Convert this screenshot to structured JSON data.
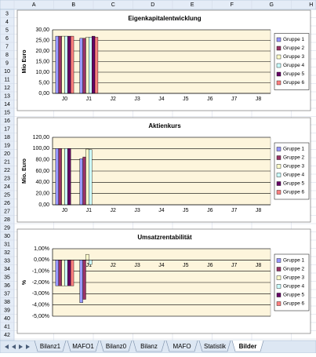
{
  "spreadsheet": {
    "columns": [
      "A",
      "B",
      "C",
      "D",
      "E",
      "F",
      "G",
      "H"
    ],
    "rows": [
      3,
      4,
      5,
      6,
      7,
      8,
      9,
      10,
      11,
      12,
      13,
      14,
      15,
      16,
      17,
      18,
      19,
      20,
      21,
      22,
      23,
      24,
      25,
      26,
      27,
      28,
      29,
      30,
      31,
      32,
      33,
      34,
      35,
      36,
      37,
      38,
      39,
      40,
      41,
      42
    ],
    "sheet_tabs": [
      "Bilanz1",
      "MAFO1",
      "Bilanz0",
      "Bilanz",
      "MAFO",
      "Statistik",
      "Bilder"
    ],
    "active_tab": 6
  },
  "chart_data": [
    {
      "type": "bar",
      "title": "Eigenkapitalentwicklung",
      "y_label": "Mio Euro",
      "categories": [
        "J0",
        "J1",
        "J2",
        "J3",
        "J4",
        "J5",
        "J6",
        "J7",
        "J8"
      ],
      "series": [
        {
          "name": "Gruppe 1",
          "color": "#9999ff",
          "values": [
            27,
            26,
            null,
            null,
            null,
            null,
            null,
            null,
            null
          ]
        },
        {
          "name": "Gruppe 2",
          "color": "#993366",
          "values": [
            27,
            26,
            null,
            null,
            null,
            null,
            null,
            null,
            null
          ]
        },
        {
          "name": "Gruppe 3",
          "color": "#ffffcc",
          "values": [
            27,
            26.5,
            null,
            null,
            null,
            null,
            null,
            null,
            null
          ]
        },
        {
          "name": "Gruppe 4",
          "color": "#ccffff",
          "values": [
            27,
            26.5,
            null,
            null,
            null,
            null,
            null,
            null,
            null
          ]
        },
        {
          "name": "Gruppe 5",
          "color": "#660066",
          "values": [
            27,
            27,
            null,
            null,
            null,
            null,
            null,
            null,
            null
          ]
        },
        {
          "name": "Gruppe 6",
          "color": "#ff8080",
          "values": [
            27,
            26.5,
            null,
            null,
            null,
            null,
            null,
            null,
            null
          ]
        }
      ],
      "ylim": [
        0,
        30
      ],
      "yticks": [
        {
          "value": 0,
          "label": "0,00"
        },
        {
          "value": 5,
          "label": "5,00"
        },
        {
          "value": 10,
          "label": "10,00"
        },
        {
          "value": 15,
          "label": "15,00"
        },
        {
          "value": 20,
          "label": "20,00"
        },
        {
          "value": 25,
          "label": "25,00"
        },
        {
          "value": 30,
          "label": "30,00"
        }
      ],
      "grid": true,
      "legend": "right"
    },
    {
      "type": "bar",
      "title": "Aktienkurs",
      "y_label": "Mio. Euro",
      "categories": [
        "J0",
        "J1",
        "J2",
        "J3",
        "J4",
        "J5",
        "J6",
        "J7",
        "J8"
      ],
      "series": [
        {
          "name": "Gruppe 1",
          "color": "#9999ff",
          "values": [
            100,
            82,
            null,
            null,
            null,
            null,
            null,
            null,
            null
          ]
        },
        {
          "name": "Gruppe 2",
          "color": "#993366",
          "values": [
            100,
            85,
            null,
            null,
            null,
            null,
            null,
            null,
            null
          ]
        },
        {
          "name": "Gruppe 3",
          "color": "#ffffcc",
          "values": [
            100,
            99,
            null,
            null,
            null,
            null,
            null,
            null,
            null
          ]
        },
        {
          "name": "Gruppe 4",
          "color": "#ccffff",
          "values": [
            100,
            98,
            null,
            null,
            null,
            null,
            null,
            null,
            null
          ]
        },
        {
          "name": "Gruppe 5",
          "color": "#660066",
          "values": [
            100,
            null,
            null,
            null,
            null,
            null,
            null,
            null,
            null
          ]
        },
        {
          "name": "Gruppe 6",
          "color": "#ff8080",
          "values": [
            null,
            null,
            null,
            null,
            null,
            null,
            null,
            null,
            null
          ]
        }
      ],
      "ylim": [
        0,
        120
      ],
      "yticks": [
        {
          "value": 0,
          "label": "0,00"
        },
        {
          "value": 20,
          "label": "20,00"
        },
        {
          "value": 40,
          "label": "40,00"
        },
        {
          "value": 60,
          "label": "60,00"
        },
        {
          "value": 80,
          "label": "80,00"
        },
        {
          "value": 100,
          "label": "100,00"
        },
        {
          "value": 120,
          "label": "120,00"
        }
      ],
      "grid": true,
      "legend": "right"
    },
    {
      "type": "bar",
      "title": "Umsatzrentabilität",
      "y_label": "%",
      "categories": [
        "J0",
        "J1",
        "J2",
        "J3",
        "J4",
        "J5",
        "J6",
        "J7",
        "J8"
      ],
      "series": [
        {
          "name": "Gruppe 1",
          "color": "#9999ff",
          "values": [
            -2.3,
            -3.8,
            null,
            null,
            null,
            null,
            null,
            null,
            null
          ]
        },
        {
          "name": "Gruppe 2",
          "color": "#993366",
          "values": [
            -2.3,
            -3.5,
            null,
            null,
            null,
            null,
            null,
            null,
            null
          ]
        },
        {
          "name": "Gruppe 3",
          "color": "#ffffcc",
          "values": [
            -2.3,
            0.5,
            null,
            null,
            null,
            null,
            null,
            null,
            null
          ]
        },
        {
          "name": "Gruppe 4",
          "color": "#ccffff",
          "values": [
            -2.3,
            -0.4,
            null,
            null,
            null,
            null,
            null,
            null,
            null
          ]
        },
        {
          "name": "Gruppe 5",
          "color": "#660066",
          "values": [
            -2.3,
            null,
            null,
            null,
            null,
            null,
            null,
            null,
            null
          ]
        },
        {
          "name": "Gruppe 6",
          "color": "#ff8080",
          "values": [
            -2.3,
            null,
            null,
            null,
            null,
            null,
            null,
            null,
            null
          ]
        }
      ],
      "ylim": [
        -5,
        1
      ],
      "yticks": [
        {
          "value": -5,
          "label": "-5,00%"
        },
        {
          "value": -4,
          "label": "-4,00%"
        },
        {
          "value": -3,
          "label": "-3,00%"
        },
        {
          "value": -2,
          "label": "-2,00%"
        },
        {
          "value": -1,
          "label": "-1,00%"
        },
        {
          "value": 0,
          "label": "0,00%"
        },
        {
          "value": 1,
          "label": "1,00%"
        }
      ],
      "grid": true,
      "legend": "right"
    }
  ]
}
